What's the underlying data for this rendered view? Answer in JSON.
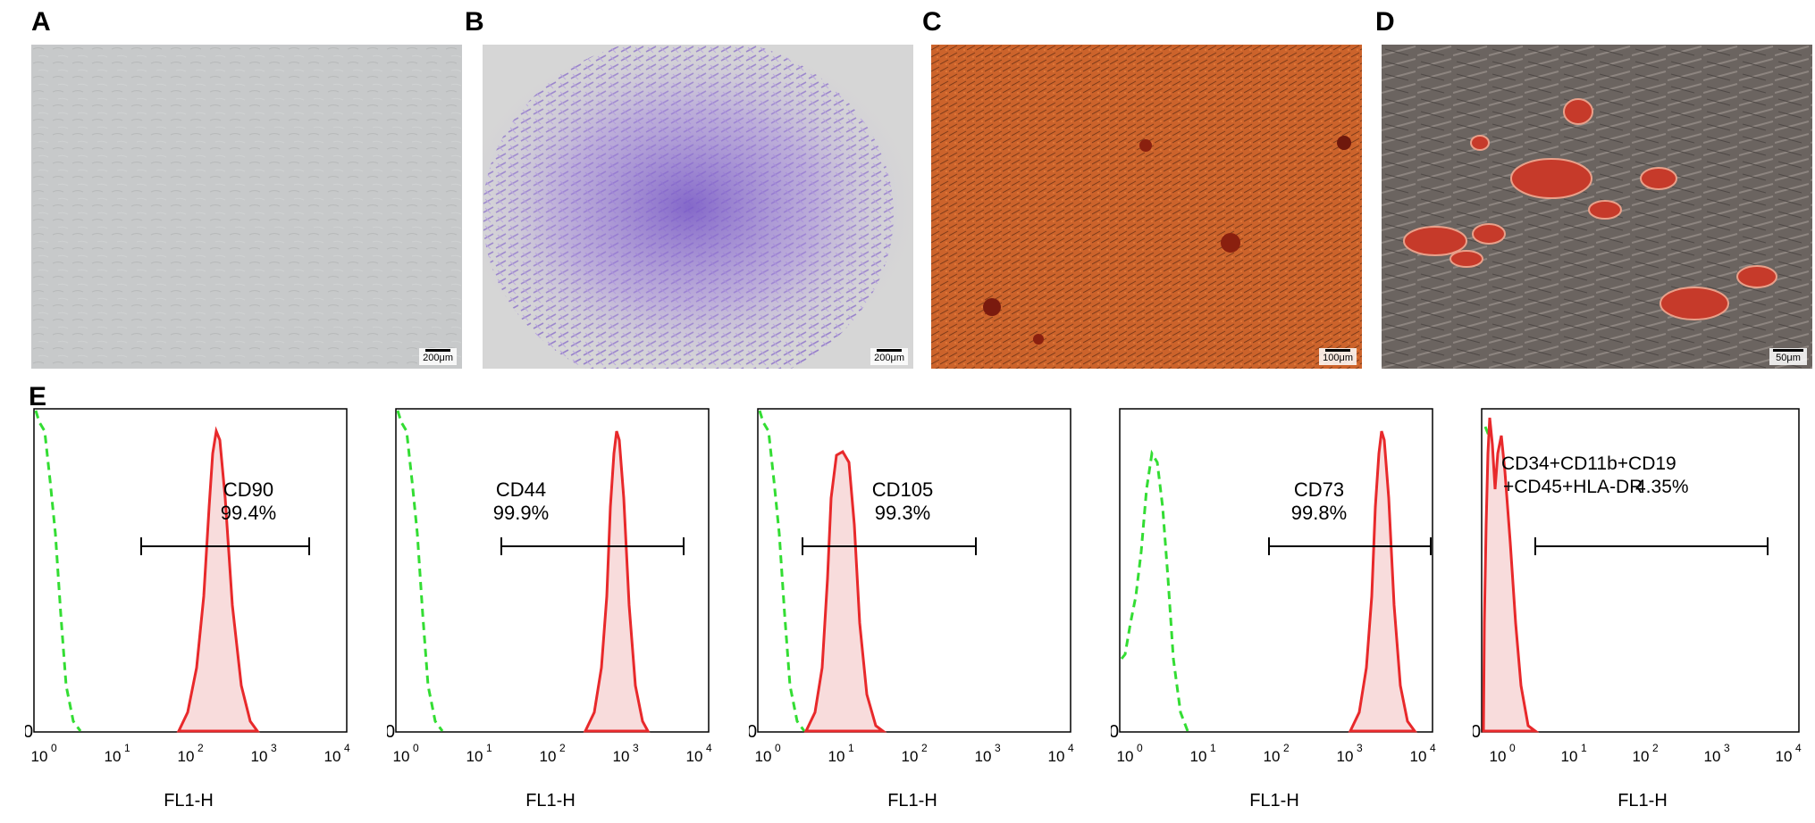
{
  "panel_labels": [
    "A",
    "B",
    "C",
    "D",
    "E"
  ],
  "micrographs": [
    {
      "label": "A",
      "scale": "200μm"
    },
    {
      "label": "B",
      "scale": "200μm"
    },
    {
      "label": "C",
      "scale": "100μm"
    },
    {
      "label": "D",
      "scale": "50μm"
    }
  ],
  "histograms": [
    {
      "marker": "CD90",
      "percent": "99.4%"
    },
    {
      "marker": "CD44",
      "percent": "99.9%"
    },
    {
      "marker": "CD105",
      "percent": "99.3%"
    },
    {
      "marker": "CD73",
      "percent": "99.8%"
    },
    {
      "marker": "CD34+CD11b+CD19",
      "marker_line2": "+CD45+HLA-DR",
      "percent": "4.35%"
    }
  ],
  "histogram_axis": {
    "xlabel": "FL1-H",
    "ticks": [
      "10",
      "10",
      "10",
      "10",
      "10"
    ],
    "exponents": [
      "0",
      "1",
      "2",
      "3",
      "4"
    ],
    "y_zero": "0"
  },
  "colors": {
    "stained": "#e8292b",
    "stained_fill": "#f8dcdc",
    "isotype": "#33dd33"
  }
}
